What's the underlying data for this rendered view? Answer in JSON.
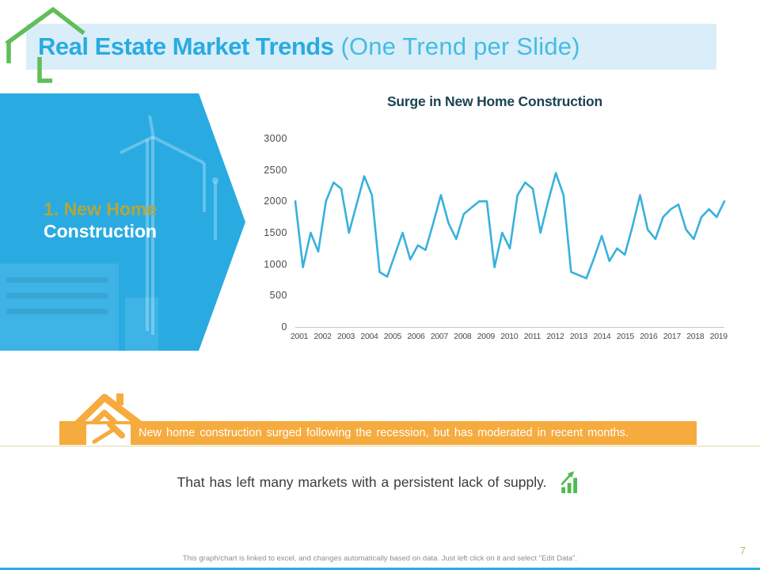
{
  "header": {
    "title_bold": "Real Estate Market Trends",
    "title_light": "(One Trend per Slide)"
  },
  "side_panel": {
    "label_line1": "1. New Home",
    "label_line2": "Construction"
  },
  "chart_data": {
    "type": "line",
    "title": "Surge in New Home Construction",
    "x_tick_labels": [
      "2001",
      "2002",
      "2003",
      "2004",
      "2005",
      "2006",
      "2007",
      "2008",
      "2009",
      "2010",
      "2011",
      "2012",
      "2013",
      "2014",
      "2015",
      "2016",
      "2017",
      "2018",
      "2019"
    ],
    "y_ticks": [
      0,
      500,
      1000,
      1500,
      2000,
      2500,
      3000
    ],
    "ylim": [
      0,
      3000
    ],
    "grid": false,
    "legend": false,
    "points_per_year": 3,
    "line_color": "#38B1DC",
    "values": [
      2000,
      950,
      1500,
      1200,
      2000,
      2300,
      2200,
      1500,
      1950,
      2400,
      2100,
      875,
      800,
      1150,
      1500,
      1075,
      1300,
      1225,
      1650,
      2100,
      1650,
      1400,
      1800,
      1900,
      2000,
      2000,
      950,
      1500,
      1250,
      2100,
      2300,
      2200,
      1500,
      2000,
      2450,
      2100,
      875,
      825,
      775,
      1100,
      1450,
      1050,
      1250,
      1150,
      1600,
      2100,
      1550,
      1400,
      1750,
      1875,
      1950,
      1550,
      1400,
      1750,
      1875,
      1750,
      2000
    ]
  },
  "banner": {
    "text": "New home construction surged following the recession, but has moderated in recent months.",
    "color": "#F6AB3E"
  },
  "supply_note": {
    "text": "That has left many markets with a persistent lack of supply."
  },
  "footer": {
    "note": "This graph/chart is linked to excel, and changes automatically based on data. Just left click on it and select \"Edit Data\".",
    "page_number": "7"
  },
  "icons": {
    "logo": "green-house-outline-icon",
    "banner_icon": "house-hammer-icon",
    "supply_icon": "growth-bars-arrow-icon"
  },
  "colors": {
    "accent_cyan": "#29ABE2",
    "band_blue": "#D9EEF9",
    "gold": "#B5A53C",
    "orange": "#F6AB3E",
    "green": "#5FBE59",
    "chart_title": "#1C4254"
  }
}
